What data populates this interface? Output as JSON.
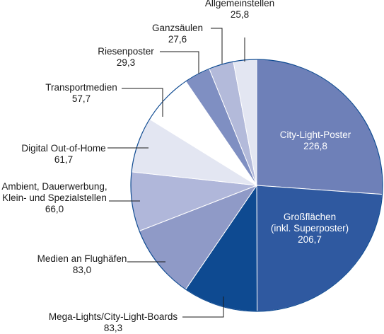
{
  "chart_data": {
    "type": "pie",
    "slices": [
      {
        "label_lines": [
          "City-Light-Poster"
        ],
        "value_text": "226,8",
        "value": 226.8,
        "color": "#6e80b8",
        "text_color": "#ffffff"
      },
      {
        "label_lines": [
          "Großflächen",
          "(inkl. Superposter)"
        ],
        "value_text": "206,7",
        "value": 206.7,
        "color": "#2f59a0",
        "text_color": "#ffffff"
      },
      {
        "label_lines": [
          "Mega-Lights/City-Light-Boards"
        ],
        "value_text": "83,3",
        "value": 83.3,
        "color": "#0e4a91",
        "text_color": "#1a1a1a"
      },
      {
        "label_lines": [
          "Medien an Flughäfen"
        ],
        "value_text": "83,0",
        "value": 83.0,
        "color": "#8f9ac7",
        "text_color": "#1a1a1a"
      },
      {
        "label_lines": [
          "Ambient, Dauerwerbung,",
          "Klein- und Spezialstellen"
        ],
        "value_text": "66,0",
        "value": 66.0,
        "color": "#b0b7da",
        "text_color": "#1a1a1a"
      },
      {
        "label_lines": [
          "Digital Out-of-Home"
        ],
        "value_text": "61,7",
        "value": 61.7,
        "color": "#e3e6f2",
        "text_color": "#1a1a1a"
      },
      {
        "label_lines": [
          "Transportmedien"
        ],
        "value_text": "57,7",
        "value": 57.7,
        "color": "#ffffff",
        "text_color": "#1a1a1a"
      },
      {
        "label_lines": [
          "Riesenposter"
        ],
        "value_text": "29,3",
        "value": 29.3,
        "color": "#7f8fc2",
        "text_color": "#1a1a1a"
      },
      {
        "label_lines": [
          "Ganzsäulen"
        ],
        "value_text": "27,6",
        "value": 27.6,
        "color": "#b3bada",
        "text_color": "#1a1a1a"
      },
      {
        "label_lines": [
          "Allgemeinstellen"
        ],
        "value_text": "25,8",
        "value": 25.8,
        "color": "#e3e6f2",
        "text_color": "#1a1a1a"
      }
    ],
    "start_angle": "12 o'clock",
    "direction": "clockwise",
    "outline_color": "#0e4a91"
  }
}
